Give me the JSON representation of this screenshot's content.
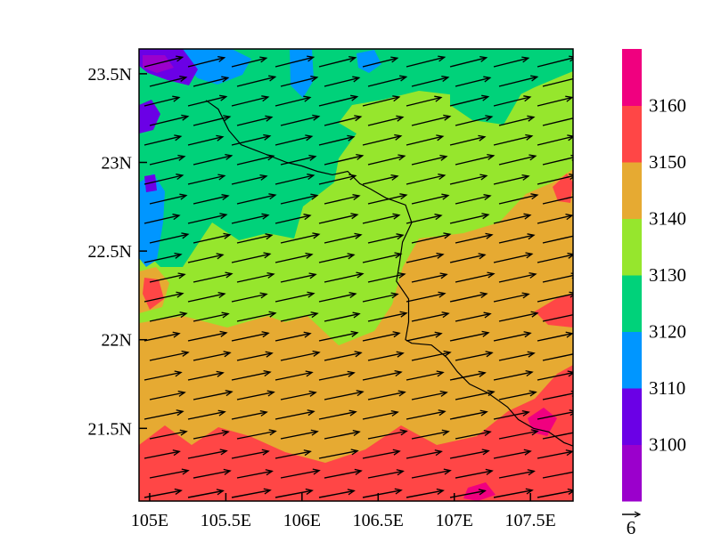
{
  "map": {
    "type": "filled-contour-with-wind-vectors",
    "lon_range": [
      104.93,
      107.78
    ],
    "lat_range": [
      21.09,
      23.64
    ],
    "x_ticks": [
      {
        "value": 105.0,
        "label": "105E"
      },
      {
        "value": 105.5,
        "label": "105.5E"
      },
      {
        "value": 106.0,
        "label": "106E"
      },
      {
        "value": 106.5,
        "label": "106.5E"
      },
      {
        "value": 107.0,
        "label": "107E"
      },
      {
        "value": 107.5,
        "label": "107.5E"
      }
    ],
    "y_ticks": [
      {
        "value": 23.5,
        "label": "23.5N"
      },
      {
        "value": 23.0,
        "label": "23N"
      },
      {
        "value": 22.5,
        "label": "22.5N"
      },
      {
        "value": 22.0,
        "label": "22N"
      },
      {
        "value": 21.5,
        "label": "21.5N"
      }
    ],
    "wind_direction": "west-southwesterly",
    "border_line": [
      [
        105.37,
        23.35
      ],
      [
        105.45,
        23.3
      ],
      [
        105.52,
        23.18
      ],
      [
        105.6,
        23.1
      ],
      [
        105.75,
        23.05
      ],
      [
        105.9,
        23.0
      ],
      [
        106.0,
        22.98
      ],
      [
        106.1,
        22.95
      ],
      [
        106.2,
        22.93
      ],
      [
        106.3,
        22.95
      ],
      [
        106.38,
        22.88
      ],
      [
        106.45,
        22.85
      ],
      [
        106.55,
        22.8
      ],
      [
        106.68,
        22.76
      ],
      [
        106.72,
        22.66
      ],
      [
        106.66,
        22.55
      ],
      [
        106.64,
        22.43
      ],
      [
        106.62,
        22.33
      ],
      [
        106.7,
        22.23
      ],
      [
        106.7,
        22.1
      ],
      [
        106.68,
        22.0
      ],
      [
        106.72,
        21.98
      ],
      [
        106.85,
        21.97
      ],
      [
        106.95,
        21.9
      ],
      [
        107.02,
        21.82
      ],
      [
        107.1,
        21.75
      ],
      [
        107.22,
        21.7
      ],
      [
        107.35,
        21.62
      ],
      [
        107.42,
        21.55
      ],
      [
        107.52,
        21.5
      ],
      [
        107.62,
        21.48
      ],
      [
        107.72,
        21.42
      ],
      [
        107.78,
        21.4
      ]
    ],
    "vector_reference": {
      "value": "6"
    }
  },
  "colorbar": {
    "colors": [
      "#9b00cc",
      "#6b00e6",
      "#0096ff",
      "#00d27a",
      "#96e62d",
      "#e6aa32",
      "#ff4646",
      "#f0007f"
    ],
    "tick_labels": [
      "3100",
      "3110",
      "3120",
      "3130",
      "3140",
      "3150",
      "3160"
    ]
  },
  "colors": {
    "level_lt_3100": "#9b00cc",
    "level_3100_3110": "#6b00e6",
    "level_3110_3120": "#0096ff",
    "level_3120_3130": "#00d27a",
    "level_3130_3140": "#96e62d",
    "level_3140_3150": "#e6aa32",
    "level_3150_3160": "#ff4646",
    "level_gt_3160": "#f0007f"
  }
}
